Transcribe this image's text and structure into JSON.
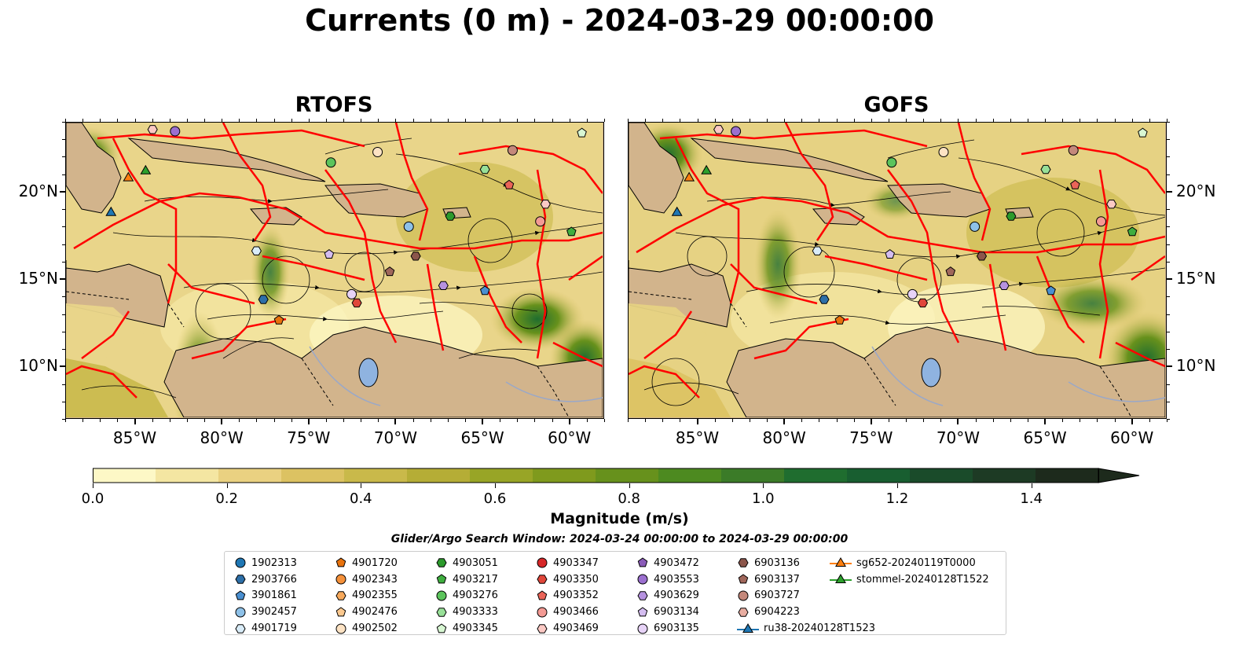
{
  "title": "Currents (0 m) - 2024-03-29 00:00:00",
  "panels": [
    {
      "name": "RTOFS"
    },
    {
      "name": "GOFS"
    }
  ],
  "lat_labels": [
    "20°N",
    "15°N",
    "10°N"
  ],
  "lon_labels": [
    "85°W",
    "80°W",
    "75°W",
    "70°W",
    "65°W",
    "60°W"
  ],
  "map_extent": {
    "lon": [
      -89,
      -58
    ],
    "lat": [
      7,
      24
    ]
  },
  "colorbar": {
    "label": "Magnitude (m/s)",
    "ticks": [
      "0.0",
      "0.2",
      "0.4",
      "0.6",
      "0.8",
      "1.0",
      "1.2",
      "1.4"
    ],
    "range": [
      0,
      1.5
    ],
    "colors": [
      "#fdf8c6",
      "#f4e6a2",
      "#ead181",
      "#dcc262",
      "#c9b94a",
      "#b5ad36",
      "#98a526",
      "#7f9a1d",
      "#67911c",
      "#4d8a20",
      "#3b7b28",
      "#1f6d2f",
      "#185e30",
      "#1a4b2a",
      "#1d3a24",
      "#1d2a1c"
    ]
  },
  "search_window": "Glider/Argo Search Window: 2024-03-24 00:00:00 to 2024-03-29 00:00:00",
  "legend": [
    {
      "label": "1902313",
      "shape": "circle",
      "color": "#1f77b4"
    },
    {
      "label": "2903766",
      "shape": "hexagon",
      "color": "#2d6fa8"
    },
    {
      "label": "3901861",
      "shape": "pentagon",
      "color": "#4a8fd0"
    },
    {
      "label": "3902457",
      "shape": "circle",
      "color": "#8ec1e8"
    },
    {
      "label": "4901719",
      "shape": "hexagon",
      "color": "#d9ecf8"
    },
    {
      "label": "4901720",
      "shape": "pentagon",
      "color": "#e8720c"
    },
    {
      "label": "4902343",
      "shape": "circle",
      "color": "#f5913a"
    },
    {
      "label": "4902355",
      "shape": "hexagon",
      "color": "#f7a95c"
    },
    {
      "label": "4902476",
      "shape": "pentagon",
      "color": "#fcc98f"
    },
    {
      "label": "4902502",
      "shape": "circle",
      "color": "#fde3c4"
    },
    {
      "label": "4903051",
      "shape": "hexagon",
      "color": "#2c9a2c"
    },
    {
      "label": "4903217",
      "shape": "pentagon",
      "color": "#3fae3f"
    },
    {
      "label": "4903276",
      "shape": "circle",
      "color": "#5cc45c"
    },
    {
      "label": "4903333",
      "shape": "hexagon",
      "color": "#98e098"
    },
    {
      "label": "4903345",
      "shape": "pentagon",
      "color": "#d8f7d3"
    },
    {
      "label": "4903347",
      "shape": "circle",
      "color": "#d62728"
    },
    {
      "label": "4903350",
      "shape": "hexagon",
      "color": "#e0463a"
    },
    {
      "label": "4903352",
      "shape": "pentagon",
      "color": "#ea6458"
    },
    {
      "label": "4903466",
      "shape": "circle",
      "color": "#f39a94"
    },
    {
      "label": "4903469",
      "shape": "hexagon",
      "color": "#fbc9c4"
    },
    {
      "label": "4903472",
      "shape": "pentagon",
      "color": "#8a5bb8"
    },
    {
      "label": "4903553",
      "shape": "circle",
      "color": "#9b6fcf"
    },
    {
      "label": "4903629",
      "shape": "hexagon",
      "color": "#b692e0"
    },
    {
      "label": "6903134",
      "shape": "pentagon",
      "color": "#d4bdf0"
    },
    {
      "label": "6903135",
      "shape": "circle",
      "color": "#e7d3f7"
    },
    {
      "label": "6903136",
      "shape": "hexagon",
      "color": "#8c564b"
    },
    {
      "label": "6903137",
      "shape": "pentagon",
      "color": "#a0675b"
    },
    {
      "label": "6903727",
      "shape": "circle",
      "color": "#c4887b"
    },
    {
      "label": "6904223",
      "shape": "hexagon",
      "color": "#e8ada1"
    },
    {
      "label": "ru38-20240128T1523",
      "shape": "triangle-line",
      "color": "#1f77b4"
    },
    {
      "label": "sg652-20240119T0000",
      "shape": "triangle-line",
      "color": "#ff7f0e"
    },
    {
      "label": "stommel-20240128T1522",
      "shape": "triangle-line",
      "color": "#2ca02c"
    }
  ],
  "markers": [
    {
      "lon": -86.4,
      "lat": 18.8,
      "shape": "triangle",
      "color": "#1f77b4"
    },
    {
      "lon": -85.4,
      "lat": 20.8,
      "shape": "triangle",
      "color": "#ff7f0e"
    },
    {
      "lon": -84.4,
      "lat": 21.2,
      "shape": "triangle",
      "color": "#2ca02c"
    },
    {
      "lon": -84.0,
      "lat": 23.6,
      "shape": "hexagon",
      "color": "#fbc9c4"
    },
    {
      "lon": -82.7,
      "lat": 23.5,
      "shape": "circle",
      "color": "#9b6fcf"
    },
    {
      "lon": -73.7,
      "lat": 21.7,
      "shape": "circle",
      "color": "#5cc45c"
    },
    {
      "lon": -71.0,
      "lat": 22.3,
      "shape": "circle",
      "color": "#fde3c4"
    },
    {
      "lon": -63.2,
      "lat": 22.4,
      "shape": "circle",
      "color": "#c4887b"
    },
    {
      "lon": -64.8,
      "lat": 21.3,
      "shape": "hexagon",
      "color": "#98e098"
    },
    {
      "lon": -63.4,
      "lat": 20.4,
      "shape": "pentagon",
      "color": "#ea6458"
    },
    {
      "lon": -59.2,
      "lat": 23.4,
      "shape": "pentagon",
      "color": "#d8f7d3"
    },
    {
      "lon": -66.8,
      "lat": 18.6,
      "shape": "hexagon",
      "color": "#2c9a2c"
    },
    {
      "lon": -61.3,
      "lat": 19.3,
      "shape": "hexagon",
      "color": "#fbc9c4"
    },
    {
      "lon": -61.6,
      "lat": 18.3,
      "shape": "circle",
      "color": "#f39a94"
    },
    {
      "lon": -59.8,
      "lat": 17.7,
      "shape": "pentagon",
      "color": "#3fae3f"
    },
    {
      "lon": -69.2,
      "lat": 18.0,
      "shape": "circle",
      "color": "#8ec1e8"
    },
    {
      "lon": -78.0,
      "lat": 16.6,
      "shape": "hexagon",
      "color": "#d9ecf8"
    },
    {
      "lon": -73.8,
      "lat": 16.4,
      "shape": "pentagon",
      "color": "#d4bdf0"
    },
    {
      "lon": -68.8,
      "lat": 16.3,
      "shape": "hexagon",
      "color": "#8c564b"
    },
    {
      "lon": -70.3,
      "lat": 15.4,
      "shape": "pentagon",
      "color": "#a0675b"
    },
    {
      "lon": -67.2,
      "lat": 14.6,
      "shape": "hexagon",
      "color": "#b692e0"
    },
    {
      "lon": -64.8,
      "lat": 14.3,
      "shape": "pentagon",
      "color": "#4a8fd0"
    },
    {
      "lon": -77.6,
      "lat": 13.8,
      "shape": "hexagon",
      "color": "#2d6fa8"
    },
    {
      "lon": -72.5,
      "lat": 14.1,
      "shape": "circle",
      "color": "#e7d3f7"
    },
    {
      "lon": -72.2,
      "lat": 13.6,
      "shape": "hexagon",
      "color": "#e0463a"
    },
    {
      "lon": -76.7,
      "lat": 12.6,
      "shape": "pentagon",
      "color": "#e8720c"
    }
  ]
}
